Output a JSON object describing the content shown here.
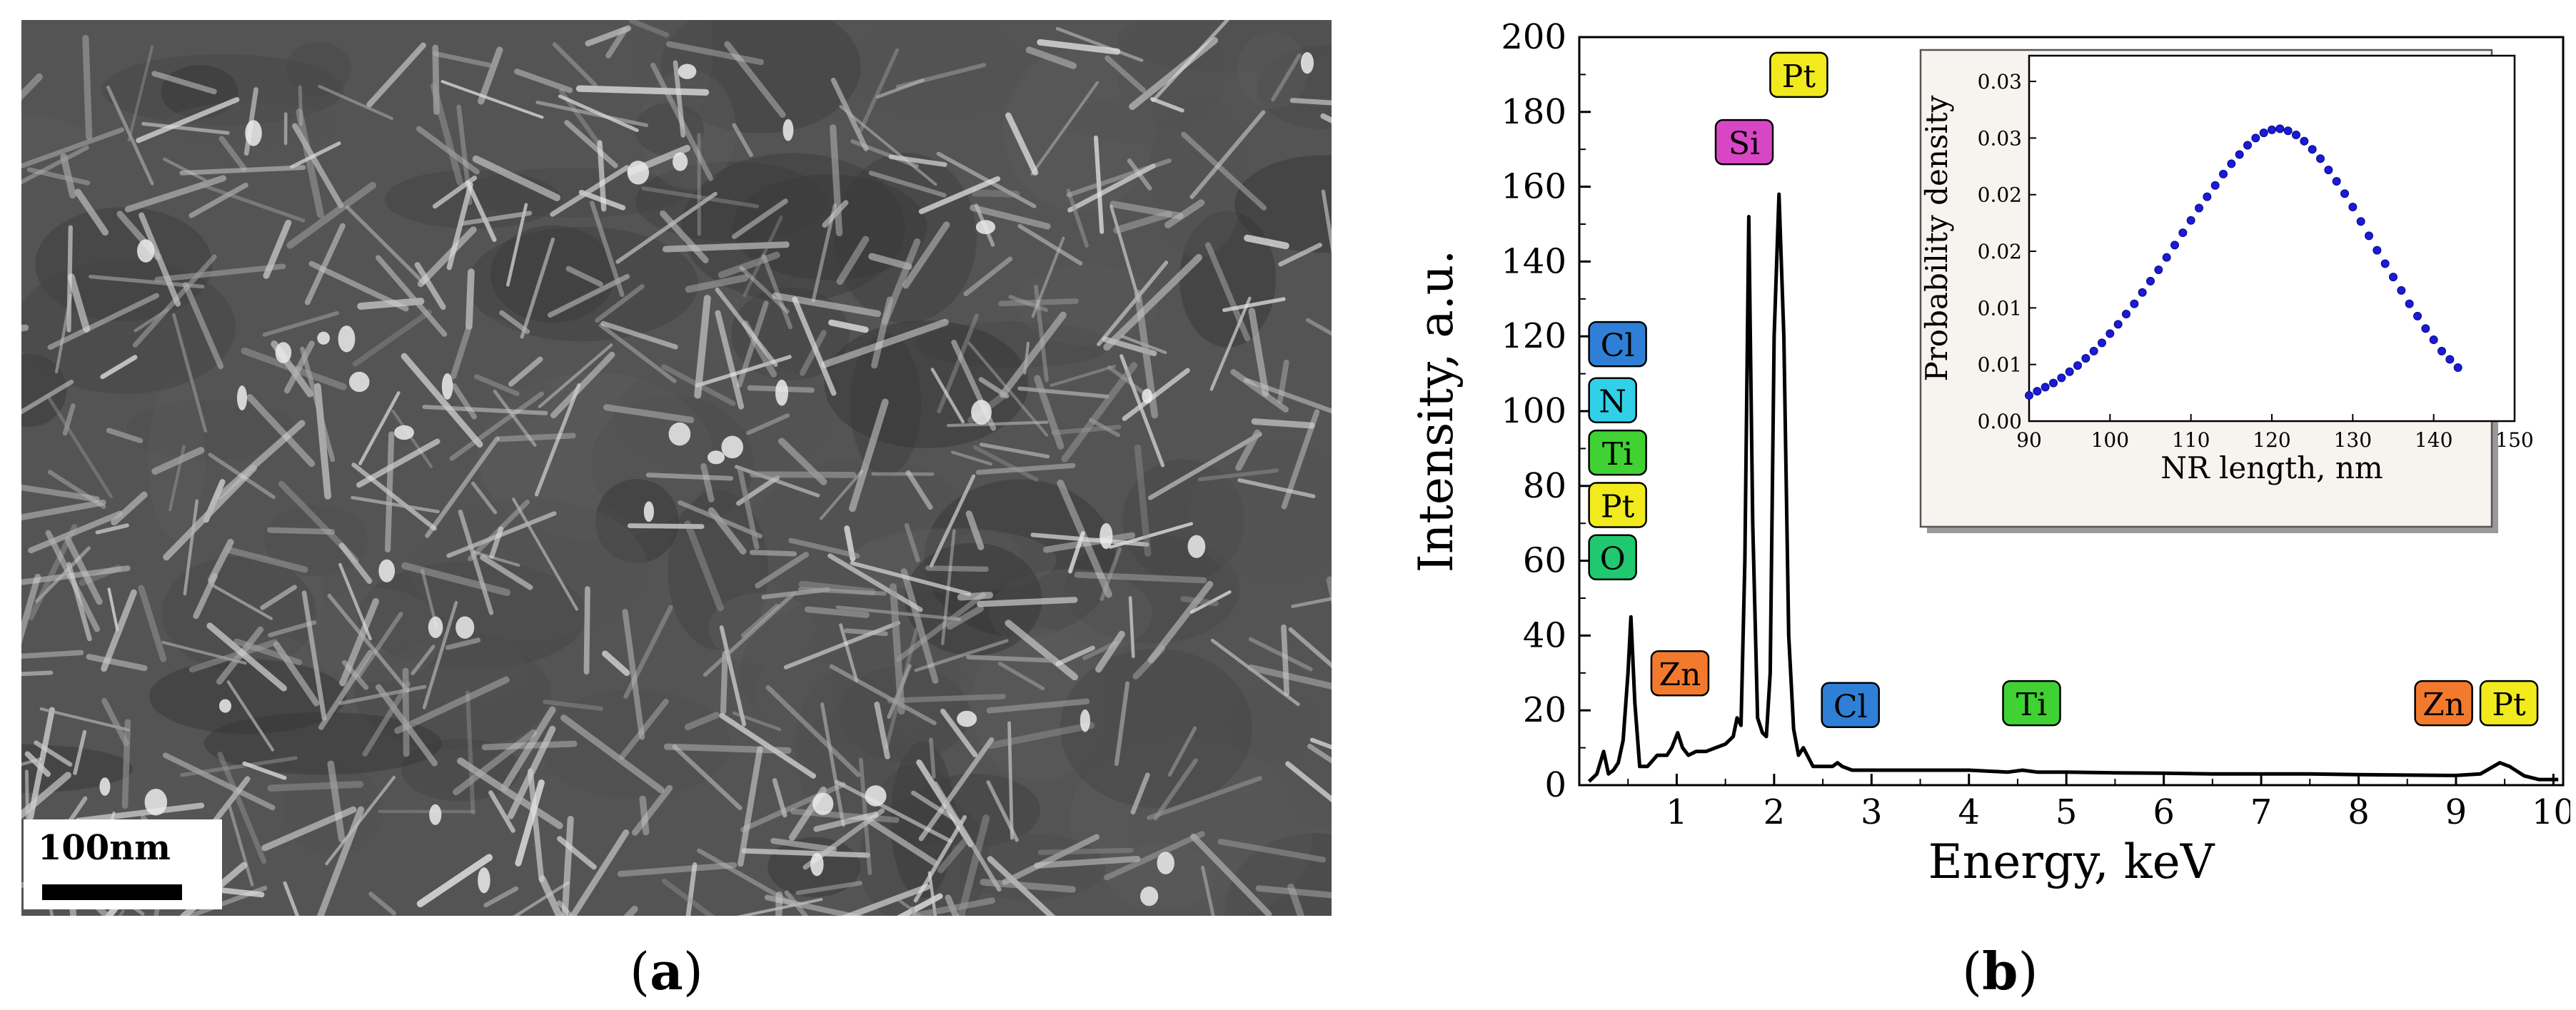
{
  "panel_a": {
    "label_open": "(",
    "label_letter": "a",
    "label_close": ")",
    "scale_bar_label": "100nm"
  },
  "panel_b": {
    "label_open": "(",
    "label_letter": "b",
    "label_close": ")"
  },
  "chart_data": [
    {
      "type": "line",
      "title": "",
      "xlabel": "Energy, keV",
      "ylabel": "Intensity, a.u.",
      "xlim": [
        0,
        10.1
      ],
      "ylim": [
        0,
        200
      ],
      "xticks": [
        "1",
        "2",
        "3",
        "4",
        "5",
        "6",
        "7",
        "8",
        "9",
        "10"
      ],
      "yticks": [
        "0",
        "20",
        "40",
        "60",
        "80",
        "100",
        "120",
        "140",
        "160",
        "180",
        "200"
      ],
      "grid": false,
      "series": [
        {
          "x": [
            0.1,
            0.18,
            0.25,
            0.3,
            0.35,
            0.4,
            0.45,
            0.5,
            0.53,
            0.57,
            0.62,
            0.7,
            0.8,
            0.9,
            0.95,
            1.01,
            1.06,
            1.12,
            1.2,
            1.3,
            1.4,
            1.5,
            1.58,
            1.62,
            1.66,
            1.7,
            1.74,
            1.78,
            1.83,
            1.88,
            1.92,
            1.96,
            2.0,
            2.05,
            2.1,
            2.15,
            2.2,
            2.25,
            2.3,
            2.4,
            2.5,
            2.6,
            2.65,
            2.7,
            2.8,
            3.0,
            3.5,
            4.0,
            4.4,
            4.55,
            4.7,
            5.0,
            5.5,
            6.0,
            6.5,
            7.0,
            7.5,
            8.0,
            8.5,
            9.0,
            9.25,
            9.35,
            9.45,
            9.55,
            9.7,
            9.85,
            10.05
          ],
          "y": [
            1,
            3,
            9,
            3,
            4,
            6,
            12,
            30,
            45,
            22,
            5,
            5,
            8,
            8,
            10,
            14,
            10,
            8,
            9,
            9,
            10,
            11,
            13,
            18,
            16,
            60,
            152,
            70,
            18,
            14,
            13,
            30,
            120,
            158,
            120,
            40,
            15,
            8,
            10,
            5,
            5,
            5,
            6,
            5,
            4,
            4,
            4,
            4,
            3.5,
            4,
            3.5,
            3.5,
            3.3,
            3.2,
            3,
            3,
            3,
            2.8,
            2.7,
            2.6,
            3,
            4.5,
            6,
            5,
            2.5,
            1.5,
            1.5
          ]
        }
      ],
      "peak_labels": [
        {
          "text": "Cl",
          "x": 0.1,
          "y": 112,
          "color": "#2f7fd6"
        },
        {
          "text": "N",
          "x": 0.1,
          "y": 97,
          "color": "#31d0e8"
        },
        {
          "text": "Ti",
          "x": 0.1,
          "y": 83,
          "color": "#3fd232"
        },
        {
          "text": "Pt",
          "x": 0.1,
          "y": 69,
          "color": "#f1ea1d"
        },
        {
          "text": "O",
          "x": 0.1,
          "y": 55,
          "color": "#20c870"
        },
        {
          "text": "Zn",
          "x": 0.74,
          "y": 24,
          "color": "#f37a2d"
        },
        {
          "text": "Si",
          "x": 1.4,
          "y": 166,
          "color": "#d946c5"
        },
        {
          "text": "Pt",
          "x": 1.96,
          "y": 184,
          "color": "#f1ea1d"
        },
        {
          "text": "Cl",
          "x": 2.49,
          "y": 15.5,
          "color": "#2f7fd6"
        },
        {
          "text": "Ti",
          "x": 4.35,
          "y": 16,
          "color": "#3fd232"
        },
        {
          "text": "Zn",
          "x": 8.58,
          "y": 16,
          "color": "#f37a2d"
        },
        {
          "text": "Pt",
          "x": 9.25,
          "y": 16,
          "color": "#f1ea1d"
        }
      ]
    },
    {
      "type": "scatter",
      "title": "",
      "xlabel": "NR length, nm",
      "ylabel": "Probability density",
      "xlim": [
        90,
        150
      ],
      "ylim": [
        0,
        0.0355
      ],
      "xticks": [
        "90",
        "100",
        "110",
        "120",
        "130",
        "140",
        "150"
      ],
      "yticks": [
        "0.00",
        "0.01",
        "0.01",
        "0.02",
        "0.02",
        "0.03",
        "0.03"
      ],
      "grid": false,
      "series": [
        {
          "x": [
            90,
            91,
            92,
            93,
            94,
            95,
            96,
            97,
            98,
            99,
            100,
            101,
            102,
            103,
            104,
            105,
            106,
            107,
            108,
            109,
            110,
            111,
            112,
            113,
            114,
            115,
            116,
            117,
            118,
            119,
            120,
            121,
            122,
            123,
            124,
            125,
            126,
            127,
            128,
            129,
            130,
            131,
            132,
            133,
            134,
            135,
            136,
            137,
            138,
            139,
            140,
            141,
            142,
            143
          ],
          "y": [
            0.0025,
            0.0029,
            0.0033,
            0.0037,
            0.0042,
            0.0048,
            0.0054,
            0.0061,
            0.0068,
            0.0076,
            0.0085,
            0.0094,
            0.0104,
            0.0114,
            0.0125,
            0.0136,
            0.0147,
            0.0159,
            0.0171,
            0.0183,
            0.0195,
            0.0207,
            0.0218,
            0.0229,
            0.024,
            0.025,
            0.0259,
            0.0268,
            0.0275,
            0.028,
            0.0283,
            0.0284,
            0.0282,
            0.0278,
            0.0272,
            0.0264,
            0.0255,
            0.0244,
            0.0233,
            0.0221,
            0.0208,
            0.0194,
            0.018,
            0.0166,
            0.0153,
            0.014,
            0.0127,
            0.0114,
            0.0102,
            0.009,
            0.0079,
            0.0068,
            0.006,
            0.0052
          ]
        }
      ]
    }
  ]
}
